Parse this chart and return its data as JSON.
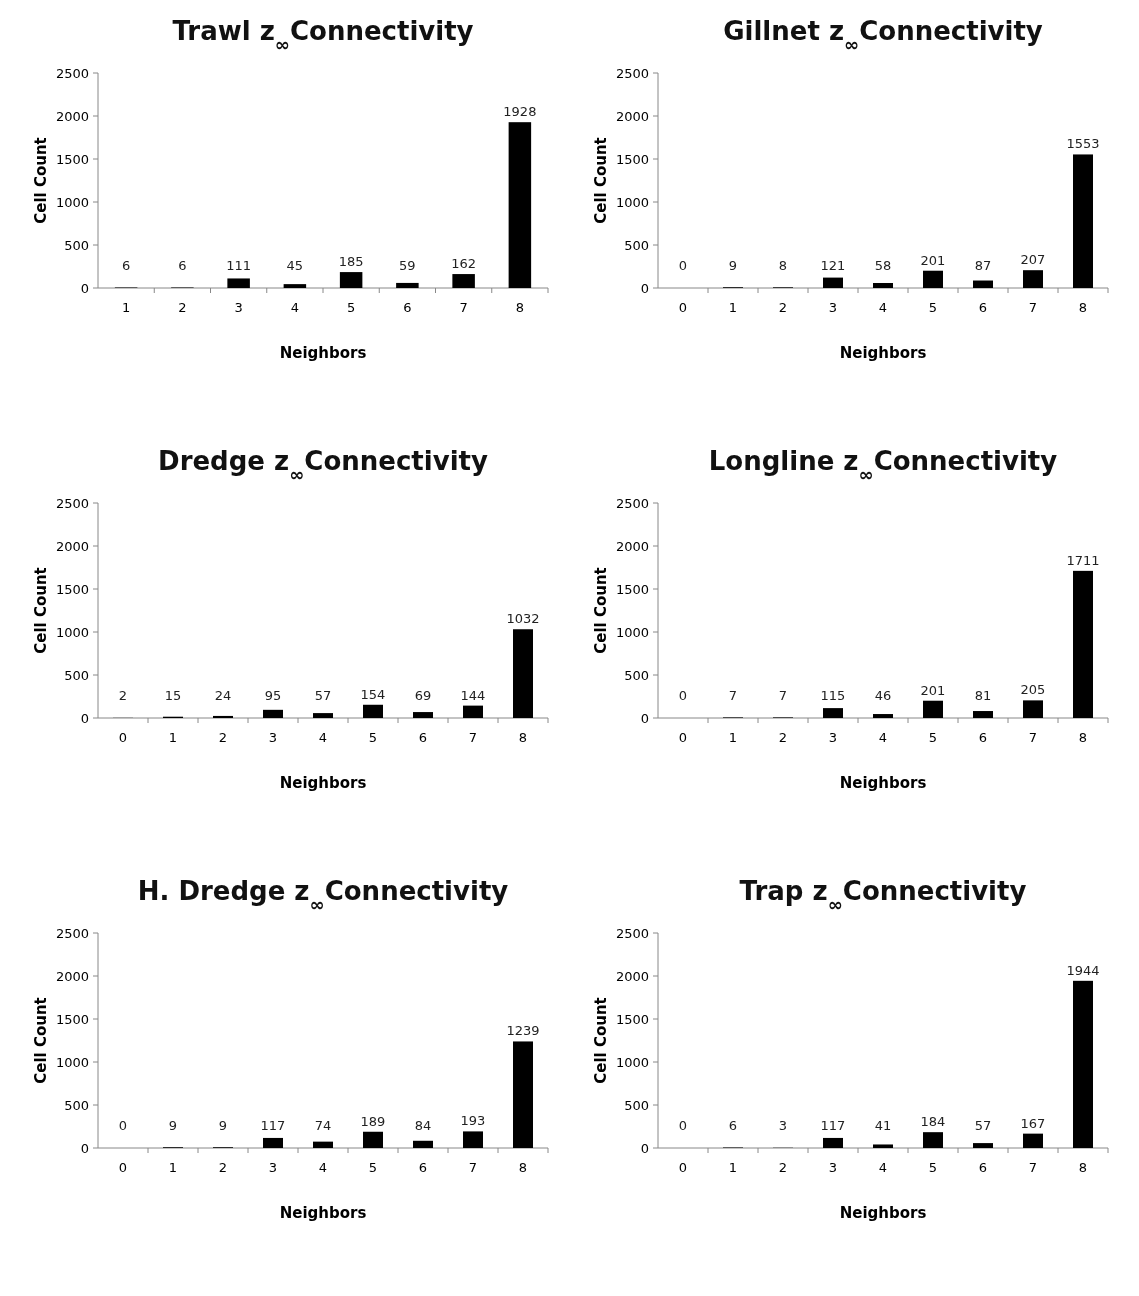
{
  "chart_data": [
    {
      "type": "bar",
      "title": "Trawl z$_{∞}$Connectivity",
      "xlabel": "Neighbors",
      "ylabel": "Cell Count",
      "categories": [
        "1",
        "2",
        "3",
        "4",
        "5",
        "6",
        "7",
        "8"
      ],
      "values": [
        6,
        6,
        111,
        45,
        185,
        59,
        162,
        1928
      ],
      "color": "#000000",
      "ylim": [
        0,
        2500
      ],
      "yticks": [
        0,
        500,
        1000,
        1500,
        2000,
        2500
      ],
      "data_labels": true
    },
    {
      "type": "bar",
      "title": "Gillnet z$_{∞}$Connectivity",
      "xlabel": "Neighbors",
      "ylabel": "Cell Count",
      "categories": [
        "0",
        "1",
        "2",
        "3",
        "4",
        "5",
        "6",
        "7",
        "8"
      ],
      "values": [
        0,
        9,
        8,
        121,
        58,
        201,
        87,
        207,
        1553
      ],
      "color": "#000000",
      "ylim": [
        0,
        2500
      ],
      "yticks": [
        0,
        500,
        1000,
        1500,
        2000,
        2500
      ],
      "data_labels": true
    },
    {
      "type": "bar",
      "title": "Dredge z$_{∞}$Connectivity",
      "xlabel": "Neighbors",
      "ylabel": "Cell Count",
      "categories": [
        "0",
        "1",
        "2",
        "3",
        "4",
        "5",
        "6",
        "7",
        "8"
      ],
      "values": [
        2,
        15,
        24,
        95,
        57,
        154,
        69,
        144,
        1032
      ],
      "color": "#000000",
      "ylim": [
        0,
        2500
      ],
      "yticks": [
        0,
        500,
        1000,
        1500,
        2000,
        2500
      ],
      "data_labels": true
    },
    {
      "type": "bar",
      "title": "Longline z$_{∞}$Connectivity",
      "xlabel": "Neighbors",
      "ylabel": "Cell Count",
      "categories": [
        "0",
        "1",
        "2",
        "3",
        "4",
        "5",
        "6",
        "7",
        "8"
      ],
      "values": [
        0,
        7,
        7,
        115,
        46,
        201,
        81,
        205,
        1711
      ],
      "color": "#000000",
      "ylim": [
        0,
        2500
      ],
      "yticks": [
        0,
        500,
        1000,
        1500,
        2000,
        2500
      ],
      "data_labels": true
    },
    {
      "type": "bar",
      "title": "H. Dredge z$_{∞}$Connectivity",
      "xlabel": "Neighbors",
      "ylabel": "Cell Count",
      "categories": [
        "0",
        "1",
        "2",
        "3",
        "4",
        "5",
        "6",
        "7",
        "8"
      ],
      "values": [
        0,
        9,
        9,
        117,
        74,
        189,
        84,
        193,
        1239
      ],
      "color": "#000000",
      "ylim": [
        0,
        2500
      ],
      "yticks": [
        0,
        500,
        1000,
        1500,
        2000,
        2500
      ],
      "data_labels": true
    },
    {
      "type": "bar",
      "title": "Trap z$_{∞}$Connectivity",
      "xlabel": "Neighbors",
      "ylabel": "Cell Count",
      "categories": [
        "0",
        "1",
        "2",
        "3",
        "4",
        "5",
        "6",
        "7",
        "8"
      ],
      "values": [
        0,
        6,
        3,
        117,
        41,
        184,
        57,
        167,
        1944
      ],
      "color": "#000000",
      "ylim": [
        0,
        2500
      ],
      "yticks": [
        0,
        500,
        1000,
        1500,
        2000,
        2500
      ],
      "data_labels": true
    }
  ]
}
